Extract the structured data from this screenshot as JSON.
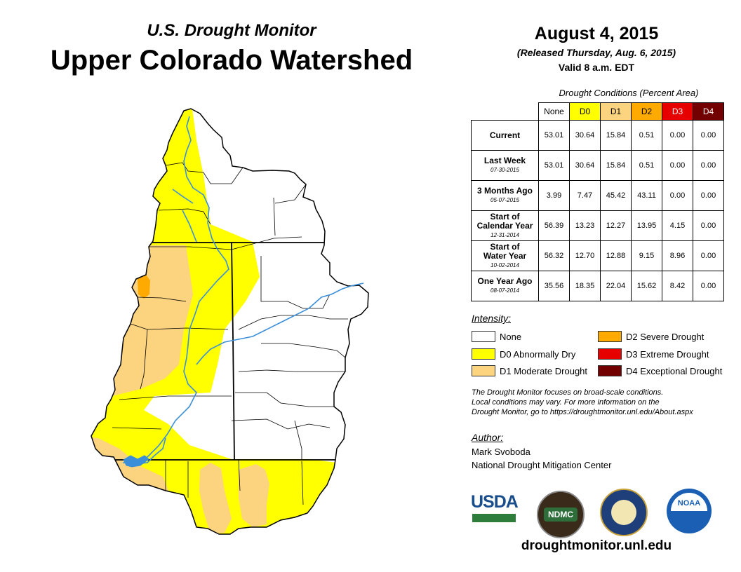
{
  "header": {
    "subtitle": "U.S. Drought Monitor",
    "title": "Upper Colorado Watershed",
    "date": "August 4, 2015",
    "released": "(Released Thursday, Aug. 6, 2015)",
    "valid": "Valid 8 a.m. EDT"
  },
  "table": {
    "caption": "Drought Conditions (Percent Area)",
    "columns": [
      "None",
      "D0",
      "D1",
      "D2",
      "D3",
      "D4"
    ],
    "column_colors": [
      "#ffffff",
      "#ffff00",
      "#fcd37f",
      "#ffaa00",
      "#e60000",
      "#730000"
    ],
    "rows": [
      {
        "label": "Current",
        "label2": "",
        "date": "",
        "values": [
          "53.01",
          "30.64",
          "15.84",
          "0.51",
          "0.00",
          "0.00"
        ]
      },
      {
        "label": "Last Week",
        "label2": "",
        "date": "07-30-2015",
        "values": [
          "53.01",
          "30.64",
          "15.84",
          "0.51",
          "0.00",
          "0.00"
        ]
      },
      {
        "label": "3 Months Ago",
        "label2": "",
        "date": "05-07-2015",
        "values": [
          "3.99",
          "7.47",
          "45.42",
          "43.11",
          "0.00",
          "0.00"
        ]
      },
      {
        "label": "Start of",
        "label2": "Calendar Year",
        "date": "12-31-2014",
        "values": [
          "56.39",
          "13.23",
          "12.27",
          "13.95",
          "4.15",
          "0.00"
        ]
      },
      {
        "label": "Start of",
        "label2": "Water Year",
        "date": "10-02-2014",
        "values": [
          "56.32",
          "12.70",
          "12.88",
          "9.15",
          "8.96",
          "0.00"
        ]
      },
      {
        "label": "One Year Ago",
        "label2": "",
        "date": "08-07-2014",
        "values": [
          "35.56",
          "18.35",
          "22.04",
          "15.62",
          "8.42",
          "0.00"
        ]
      }
    ]
  },
  "legend": {
    "title": "Intensity:",
    "items": [
      {
        "label": "None",
        "color": "#ffffff"
      },
      {
        "label": "D0 Abnormally Dry",
        "color": "#ffff00"
      },
      {
        "label": "D1 Moderate Drought",
        "color": "#fcd37f"
      },
      {
        "label": "D2 Severe Drought",
        "color": "#ffaa00"
      },
      {
        "label": "D3 Extreme Drought",
        "color": "#e60000"
      },
      {
        "label": "D4 Exceptional Drought",
        "color": "#730000"
      }
    ]
  },
  "note": {
    "line1": "The Drought Monitor focuses on broad-scale conditions.",
    "line2": "Local conditions may vary. For more information on the",
    "line3": "Drought Monitor, go to https://droughtmonitor.unl.edu/About.aspx"
  },
  "author": {
    "label": "Author:",
    "name": "Mark Svoboda",
    "org": "National Drought Mitigation Center"
  },
  "logos": {
    "usda": "USDA",
    "ndmc": "NDMC",
    "noaa": "NOAA"
  },
  "website": "droughtmonitor.unl.edu",
  "colors": {
    "river": "#3b8fd9",
    "boundary": "#000000"
  }
}
